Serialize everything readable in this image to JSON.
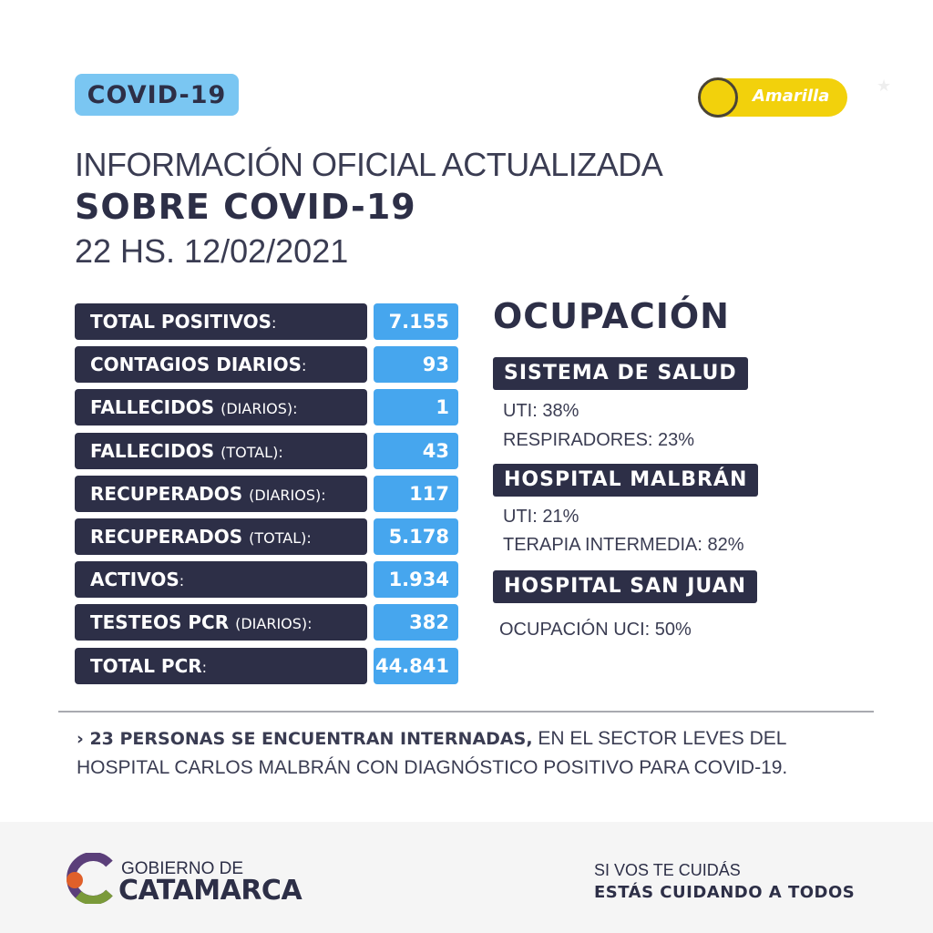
{
  "header": {
    "badge": "COVID-19",
    "status_label": "Amarilla",
    "status_color": "#f2d10c",
    "title_line1": "INFORMACIÓN OFICIAL ACTUALIZADA",
    "title_line2": "SOBRE COVID-19",
    "date": "22 HS. 12/02/2021"
  },
  "stats": [
    {
      "label": "TOTAL POSITIVOS",
      "sub": "",
      "value": "7.155"
    },
    {
      "label": "CONTAGIOS DIARIOS",
      "sub": "",
      "value": "93"
    },
    {
      "label": "FALLECIDOS",
      "sub": "(DIARIOS)",
      "value": "1"
    },
    {
      "label": "FALLECIDOS",
      "sub": "(TOTAL)",
      "value": "43"
    },
    {
      "label": "RECUPERADOS",
      "sub": "(DIARIOS)",
      "value": "117"
    },
    {
      "label": "RECUPERADOS",
      "sub": "(TOTAL)",
      "value": "5.178"
    },
    {
      "label": "ACTIVOS",
      "sub": "",
      "value": "1.934"
    },
    {
      "label": "TESTEOS PCR",
      "sub": "(DIARIOS)",
      "value": "382"
    },
    {
      "label": "TOTAL PCR",
      "sub": "",
      "value": "44.841"
    }
  ],
  "ocupacion": {
    "title": "OCUPACIÓN",
    "sections": [
      {
        "name": "SISTEMA DE SALUD",
        "lines": [
          "UTI: 38%",
          "RESPIRADORES: 23%"
        ]
      },
      {
        "name": "HOSPITAL MALBRÁN",
        "lines": [
          "UTI: 21%",
          "TERAPIA INTERMEDIA: 82%"
        ]
      },
      {
        "name": "HOSPITAL SAN JUAN",
        "lines": [
          "OCUPACIÓN UCI: 50%"
        ]
      }
    ]
  },
  "note": {
    "bold": "23 PERSONAS SE ENCUENTRAN INTERNADAS,",
    "rest": " EN EL SECTOR LEVES DEL HOSPITAL CARLOS MALBRÁN CON DIAGNÓSTICO POSITIVO PARA COVID-19."
  },
  "footer": {
    "logo_top": "GOBIERNO DE",
    "logo_main": "CATAMARCA",
    "slogan1": "SI VOS TE CUIDÁS",
    "slogan2": "ESTÁS CUIDANDO A TODOS"
  }
}
